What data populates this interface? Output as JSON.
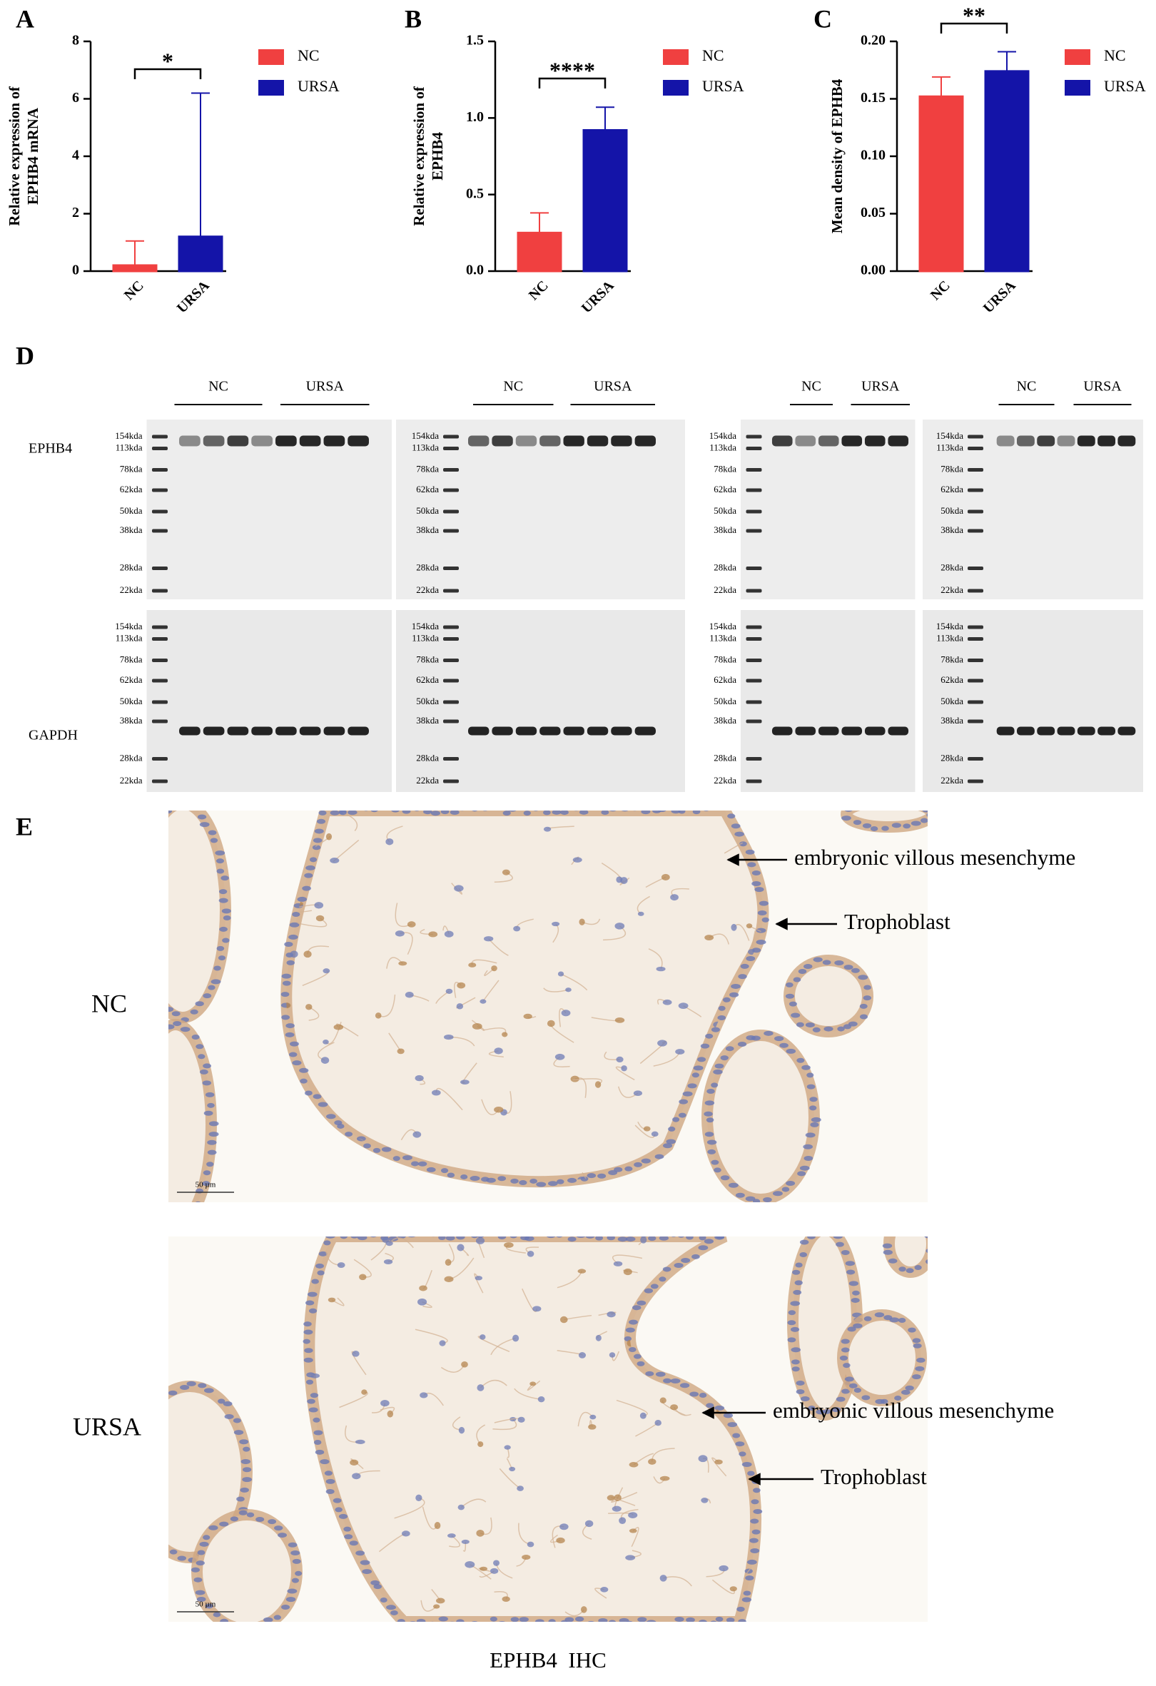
{
  "panel_labels": [
    "A",
    "B",
    "C",
    "D",
    "E"
  ],
  "chart_data": [
    {
      "type": "bar",
      "ylabel": [
        "Relative expression of",
        "EPHB4 mRNA"
      ],
      "categories": [
        "NC",
        "URSA"
      ],
      "values": [
        0.2,
        1.2
      ],
      "errors": [
        0.85,
        5.0
      ],
      "colors": [
        "#f04040",
        "#1414a8"
      ],
      "significance": "*",
      "ylim": [
        0,
        8
      ],
      "yticks": [
        0,
        2,
        4,
        6,
        8
      ],
      "legend": true
    },
    {
      "type": "bar",
      "ylabel": [
        "Relative expression of",
        "EPHB4"
      ],
      "categories": [
        "NC",
        "URSA"
      ],
      "values": [
        0.25,
        0.92
      ],
      "errors": [
        0.13,
        0.15
      ],
      "colors": [
        "#f04040",
        "#1414a8"
      ],
      "significance": "****",
      "ylim": [
        0,
        1.5
      ],
      "yticks": [
        {
          "value": 0,
          "label": "0.0"
        },
        0.5,
        {
          "value": 1,
          "label": "1.0"
        },
        1.5
      ],
      "legend": true
    },
    {
      "type": "bar",
      "ylabel": [
        "Mean density of EPHB4"
      ],
      "categories": [
        "NC",
        "URSA"
      ],
      "values": [
        0.152,
        0.174
      ],
      "errors": [
        0.017,
        0.017
      ],
      "colors": [
        "#f04040",
        "#1414a8"
      ],
      "significance": "**",
      "ylim": [
        0,
        0.2
      ],
      "yticks": [
        {
          "value": 0,
          "label": "0.00"
        },
        0.05,
        {
          "value": 0.1,
          "label": "0.10"
        },
        0.15,
        {
          "value": 0.2,
          "label": "0.20"
        }
      ],
      "legend": true
    }
  ],
  "blot": {
    "groups": [
      "NC",
      "URSA"
    ],
    "proteins": [
      "EPHB4",
      "GAPDH"
    ],
    "markers": [
      "154kda",
      "113kda",
      "78kda",
      "62kda",
      "50kda",
      "38kda",
      "28kda",
      "22kda"
    ]
  },
  "ihc": {
    "rows": [
      "NC",
      "URSA"
    ],
    "annotations": [
      "embryonic villous mesenchyme",
      "Trophoblast"
    ],
    "scale_bar": "50 µm",
    "caption": "EPHB4  IHC"
  }
}
